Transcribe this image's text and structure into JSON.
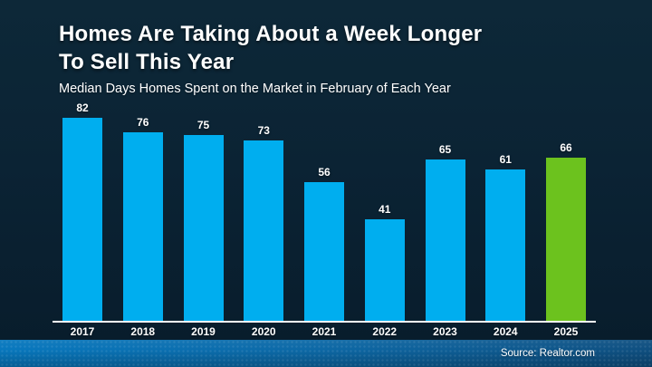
{
  "header": {
    "title_line1": "Homes Are Taking About a Week Longer",
    "title_line2": "To Sell This Year",
    "subtitle": "Median Days Homes Spent on the Market in February of Each Year"
  },
  "chart_data": {
    "type": "bar",
    "title": "Homes Are Taking About a Week Longer To Sell This Year",
    "subtitle": "Median Days Homes Spent on the Market in February of Each Year",
    "categories": [
      "2017",
      "2018",
      "2019",
      "2020",
      "2021",
      "2022",
      "2023",
      "2024",
      "2025"
    ],
    "values": [
      82,
      76,
      75,
      73,
      56,
      41,
      65,
      61,
      66
    ],
    "xlabel": "",
    "ylabel": "",
    "ylim": [
      0,
      90
    ],
    "grid": false,
    "legend": false,
    "value_labels_shown": true,
    "bar_color": "#00aeef",
    "highlight_category": "2025",
    "highlight_color": "#6cc21e",
    "axis_line_color": "#ffffff",
    "background_color": "#0a2233"
  },
  "footer": {
    "source_label": "Source: Realtor.com"
  }
}
